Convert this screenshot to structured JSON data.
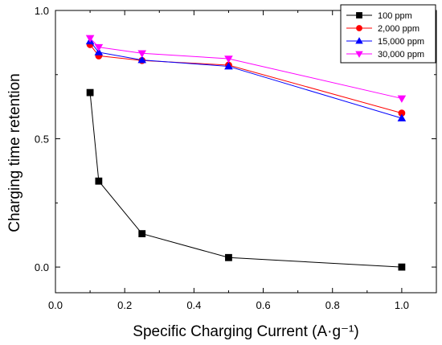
{
  "chart_data": {
    "type": "line",
    "xlabel": "Specific Charging Current (A·g⁻¹)",
    "ylabel": "Charging time retention",
    "xlim": [
      0.0,
      1.1
    ],
    "ylim": [
      -0.1,
      1.0
    ],
    "x_ticks": [
      "0.0",
      "0.2",
      "0.4",
      "0.6",
      "0.8",
      "1.0"
    ],
    "y_ticks": [
      "1.0",
      "0.5",
      "0.0"
    ],
    "legend_position": "top-right",
    "series": [
      {
        "name": "100 ppm",
        "color": "#000000",
        "marker": "square",
        "x": [
          0.1,
          0.125,
          0.25,
          0.5,
          1.0
        ],
        "y": [
          0.68,
          0.335,
          0.13,
          0.037,
          0.0
        ]
      },
      {
        "name": "2,000 ppm",
        "color": "#ff0000",
        "marker": "circle",
        "x": [
          0.1,
          0.125,
          0.25,
          0.5,
          1.0
        ],
        "y": [
          0.867,
          0.823,
          0.805,
          0.787,
          0.6
        ]
      },
      {
        "name": "15,000 ppm",
        "color": "#0000ff",
        "marker": "triangle-up",
        "x": [
          0.1,
          0.125,
          0.25,
          0.5,
          1.0
        ],
        "y": [
          0.88,
          0.837,
          0.807,
          0.782,
          0.58
        ]
      },
      {
        "name": "30,000 ppm",
        "color": "#ff00ff",
        "marker": "triangle-down",
        "x": [
          0.1,
          0.125,
          0.25,
          0.5,
          1.0
        ],
        "y": [
          0.892,
          0.857,
          0.833,
          0.812,
          0.657
        ]
      }
    ]
  }
}
